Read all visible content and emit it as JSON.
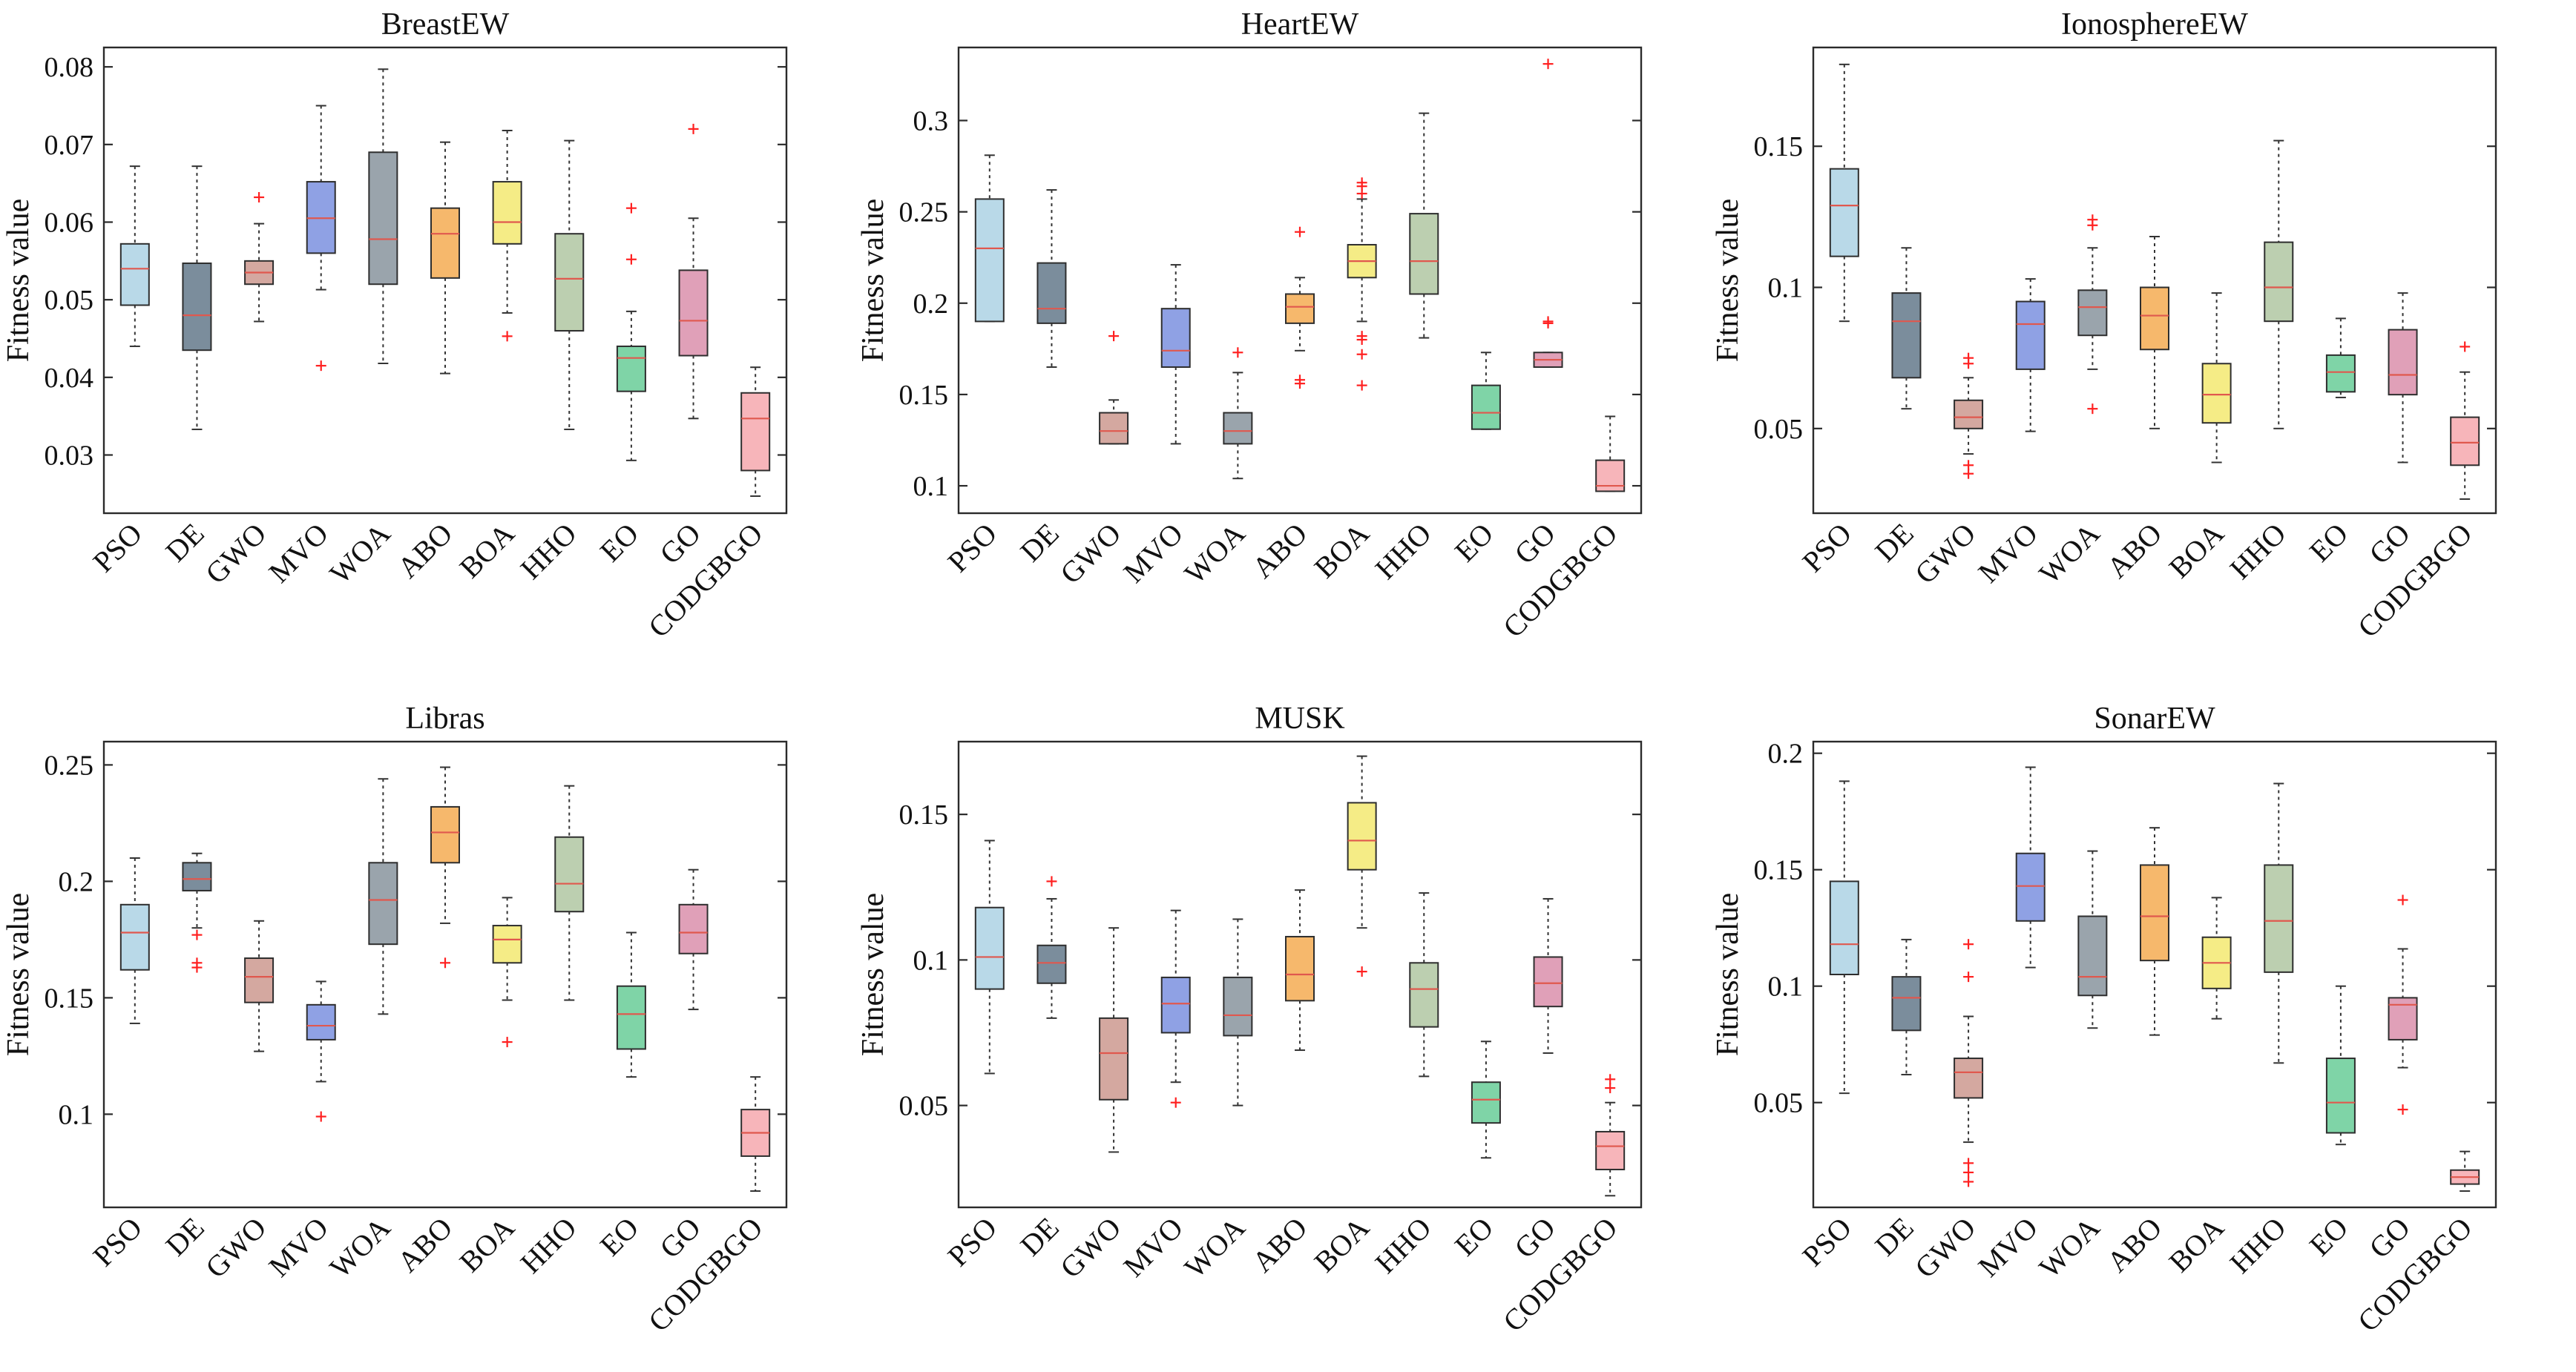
{
  "chart_data": [
    {
      "type": "box",
      "title": "BreastEW",
      "ylabel": "Fitness value",
      "xlabel": "",
      "ylim": [
        0.0225,
        0.0825
      ],
      "yticks": [
        0.03,
        0.04,
        0.05,
        0.06,
        0.07,
        0.08
      ],
      "ytick_labels": [
        "0.03",
        "0.04",
        "0.05",
        "0.06",
        "0.07",
        "0.08"
      ],
      "categories": [
        "PSO",
        "DE",
        "GWO",
        "MVO",
        "WOA",
        "ABO",
        "BOA",
        "HHO",
        "EO",
        "GO",
        "CODGBGO"
      ],
      "boxes": [
        {
          "category": "PSO",
          "whisker_low": 0.044,
          "q1": 0.0493,
          "median": 0.054,
          "q3": 0.0572,
          "whisker_high": 0.0672,
          "outliers": []
        },
        {
          "category": "DE",
          "whisker_low": 0.0333,
          "q1": 0.0435,
          "median": 0.048,
          "q3": 0.0547,
          "whisker_high": 0.0672,
          "outliers": []
        },
        {
          "category": "GWO",
          "whisker_low": 0.0472,
          "q1": 0.052,
          "median": 0.0535,
          "q3": 0.055,
          "whisker_high": 0.0598,
          "outliers": [
            0.0632
          ]
        },
        {
          "category": "MVO",
          "whisker_low": 0.0513,
          "q1": 0.056,
          "median": 0.0605,
          "q3": 0.0652,
          "whisker_high": 0.075,
          "outliers": [
            0.0415
          ]
        },
        {
          "category": "WOA",
          "whisker_low": 0.0418,
          "q1": 0.052,
          "median": 0.0578,
          "q3": 0.069,
          "whisker_high": 0.0797,
          "outliers": []
        },
        {
          "category": "ABO",
          "whisker_low": 0.0405,
          "q1": 0.0528,
          "median": 0.0585,
          "q3": 0.0618,
          "whisker_high": 0.0703,
          "outliers": []
        },
        {
          "category": "BOA",
          "whisker_low": 0.0483,
          "q1": 0.0572,
          "median": 0.06,
          "q3": 0.0652,
          "whisker_high": 0.0718,
          "outliers": [
            0.0453
          ]
        },
        {
          "category": "HHO",
          "whisker_low": 0.0333,
          "q1": 0.046,
          "median": 0.0527,
          "q3": 0.0585,
          "whisker_high": 0.0705,
          "outliers": []
        },
        {
          "category": "EO",
          "whisker_low": 0.0293,
          "q1": 0.0382,
          "median": 0.0425,
          "q3": 0.044,
          "whisker_high": 0.0485,
          "outliers": [
            0.0552,
            0.0618
          ]
        },
        {
          "category": "GO",
          "whisker_low": 0.0347,
          "q1": 0.0428,
          "median": 0.0473,
          "q3": 0.0538,
          "whisker_high": 0.0605,
          "outliers": [
            0.072
          ]
        },
        {
          "category": "CODGBGO",
          "whisker_low": 0.0247,
          "q1": 0.028,
          "median": 0.0347,
          "q3": 0.038,
          "whisker_high": 0.0413,
          "outliers": []
        }
      ]
    },
    {
      "type": "box",
      "title": "HeartEW",
      "ylabel": "Fitness value",
      "xlabel": "",
      "ylim": [
        0.085,
        0.34
      ],
      "yticks": [
        0.1,
        0.15,
        0.2,
        0.25,
        0.3
      ],
      "ytick_labels": [
        "0.1",
        "0.15",
        "0.2",
        "0.25",
        "0.3"
      ],
      "categories": [
        "PSO",
        "DE",
        "GWO",
        "MVO",
        "WOA",
        "ABO",
        "BOA",
        "HHO",
        "EO",
        "GO",
        "CODGBGO"
      ],
      "boxes": [
        {
          "category": "PSO",
          "whisker_low": 0.19,
          "q1": 0.19,
          "median": 0.23,
          "q3": 0.257,
          "whisker_high": 0.281,
          "outliers": []
        },
        {
          "category": "DE",
          "whisker_low": 0.165,
          "q1": 0.189,
          "median": 0.197,
          "q3": 0.222,
          "whisker_high": 0.262,
          "outliers": []
        },
        {
          "category": "GWO",
          "whisker_low": 0.123,
          "q1": 0.123,
          "median": 0.13,
          "q3": 0.14,
          "whisker_high": 0.147,
          "outliers": [
            0.182
          ]
        },
        {
          "category": "MVO",
          "whisker_low": 0.123,
          "q1": 0.165,
          "median": 0.174,
          "q3": 0.197,
          "whisker_high": 0.221,
          "outliers": []
        },
        {
          "category": "WOA",
          "whisker_low": 0.104,
          "q1": 0.123,
          "median": 0.13,
          "q3": 0.14,
          "whisker_high": 0.162,
          "outliers": [
            0.173
          ]
        },
        {
          "category": "ABO",
          "whisker_low": 0.174,
          "q1": 0.189,
          "median": 0.198,
          "q3": 0.205,
          "whisker_high": 0.214,
          "outliers": [
            0.156,
            0.158,
            0.239
          ]
        },
        {
          "category": "BOA",
          "whisker_low": 0.19,
          "q1": 0.214,
          "median": 0.223,
          "q3": 0.232,
          "whisker_high": 0.257,
          "outliers": [
            0.155,
            0.172,
            0.18,
            0.182,
            0.26,
            0.264,
            0.266
          ]
        },
        {
          "category": "HHO",
          "whisker_low": 0.181,
          "q1": 0.205,
          "median": 0.223,
          "q3": 0.249,
          "whisker_high": 0.304,
          "outliers": []
        },
        {
          "category": "EO",
          "whisker_low": 0.131,
          "q1": 0.131,
          "median": 0.14,
          "q3": 0.155,
          "whisker_high": 0.173,
          "outliers": []
        },
        {
          "category": "GO",
          "whisker_low": 0.165,
          "q1": 0.165,
          "median": 0.169,
          "q3": 0.173,
          "whisker_high": 0.173,
          "outliers": [
            0.189,
            0.19,
            0.331
          ]
        },
        {
          "category": "CODGBGO",
          "whisker_low": 0.097,
          "q1": 0.097,
          "median": 0.1,
          "q3": 0.114,
          "whisker_high": 0.138,
          "outliers": []
        }
      ]
    },
    {
      "type": "box",
      "title": "IonosphereEW",
      "ylabel": "Fitness value",
      "xlabel": "",
      "ylim": [
        0.02,
        0.185
      ],
      "yticks": [
        0.05,
        0.1,
        0.15
      ],
      "ytick_labels": [
        "0.05",
        "0.1",
        "0.15"
      ],
      "categories": [
        "PSO",
        "DE",
        "GWO",
        "MVO",
        "WOA",
        "ABO",
        "BOA",
        "HHO",
        "EO",
        "GO",
        "CODGBGO"
      ],
      "boxes": [
        {
          "category": "PSO",
          "whisker_low": 0.088,
          "q1": 0.111,
          "median": 0.129,
          "q3": 0.142,
          "whisker_high": 0.179,
          "outliers": []
        },
        {
          "category": "DE",
          "whisker_low": 0.057,
          "q1": 0.068,
          "median": 0.088,
          "q3": 0.098,
          "whisker_high": 0.114,
          "outliers": []
        },
        {
          "category": "GWO",
          "whisker_low": 0.041,
          "q1": 0.05,
          "median": 0.054,
          "q3": 0.06,
          "whisker_high": 0.068,
          "outliers": [
            0.034,
            0.037,
            0.073,
            0.075
          ]
        },
        {
          "category": "MVO",
          "whisker_low": 0.049,
          "q1": 0.071,
          "median": 0.087,
          "q3": 0.095,
          "whisker_high": 0.103,
          "outliers": []
        },
        {
          "category": "WOA",
          "whisker_low": 0.071,
          "q1": 0.083,
          "median": 0.093,
          "q3": 0.099,
          "whisker_high": 0.114,
          "outliers": [
            0.057,
            0.122,
            0.124
          ]
        },
        {
          "category": "ABO",
          "whisker_low": 0.05,
          "q1": 0.078,
          "median": 0.09,
          "q3": 0.1,
          "whisker_high": 0.118,
          "outliers": []
        },
        {
          "category": "BOA",
          "whisker_low": 0.038,
          "q1": 0.052,
          "median": 0.062,
          "q3": 0.073,
          "whisker_high": 0.098,
          "outliers": []
        },
        {
          "category": "HHO",
          "whisker_low": 0.05,
          "q1": 0.088,
          "median": 0.1,
          "q3": 0.116,
          "whisker_high": 0.152,
          "outliers": []
        },
        {
          "category": "EO",
          "whisker_low": 0.061,
          "q1": 0.063,
          "median": 0.07,
          "q3": 0.076,
          "whisker_high": 0.089,
          "outliers": []
        },
        {
          "category": "GO",
          "whisker_low": 0.038,
          "q1": 0.062,
          "median": 0.069,
          "q3": 0.085,
          "whisker_high": 0.098,
          "outliers": []
        },
        {
          "category": "CODGBGO",
          "whisker_low": 0.025,
          "q1": 0.037,
          "median": 0.045,
          "q3": 0.054,
          "whisker_high": 0.07,
          "outliers": [
            0.079
          ]
        }
      ]
    },
    {
      "type": "box",
      "title": "Libras",
      "ylabel": "Fitness value",
      "xlabel": "",
      "ylim": [
        0.06,
        0.26
      ],
      "yticks": [
        0.1,
        0.15,
        0.2,
        0.25
      ],
      "ytick_labels": [
        "0.1",
        "0.15",
        "0.2",
        "0.25"
      ],
      "categories": [
        "PSO",
        "DE",
        "GWO",
        "MVO",
        "WOA",
        "ABO",
        "BOA",
        "HHO",
        "EO",
        "GO",
        "CODGBGO"
      ],
      "boxes": [
        {
          "category": "PSO",
          "whisker_low": 0.139,
          "q1": 0.162,
          "median": 0.178,
          "q3": 0.19,
          "whisker_high": 0.21,
          "outliers": []
        },
        {
          "category": "DE",
          "whisker_low": 0.18,
          "q1": 0.196,
          "median": 0.201,
          "q3": 0.208,
          "whisker_high": 0.212,
          "outliers": [
            0.163,
            0.165,
            0.177
          ]
        },
        {
          "category": "GWO",
          "whisker_low": 0.127,
          "q1": 0.148,
          "median": 0.159,
          "q3": 0.167,
          "whisker_high": 0.183,
          "outliers": []
        },
        {
          "category": "MVO",
          "whisker_low": 0.114,
          "q1": 0.132,
          "median": 0.138,
          "q3": 0.147,
          "whisker_high": 0.157,
          "outliers": [
            0.099
          ]
        },
        {
          "category": "WOA",
          "whisker_low": 0.143,
          "q1": 0.173,
          "median": 0.192,
          "q3": 0.208,
          "whisker_high": 0.244,
          "outliers": []
        },
        {
          "category": "ABO",
          "whisker_low": 0.182,
          "q1": 0.208,
          "median": 0.221,
          "q3": 0.232,
          "whisker_high": 0.249,
          "outliers": [
            0.165
          ]
        },
        {
          "category": "BOA",
          "whisker_low": 0.149,
          "q1": 0.165,
          "median": 0.175,
          "q3": 0.181,
          "whisker_high": 0.193,
          "outliers": [
            0.131
          ]
        },
        {
          "category": "HHO",
          "whisker_low": 0.149,
          "q1": 0.187,
          "median": 0.199,
          "q3": 0.219,
          "whisker_high": 0.241,
          "outliers": []
        },
        {
          "category": "EO",
          "whisker_low": 0.116,
          "q1": 0.128,
          "median": 0.143,
          "q3": 0.155,
          "whisker_high": 0.178,
          "outliers": []
        },
        {
          "category": "GO",
          "whisker_low": 0.145,
          "q1": 0.169,
          "median": 0.178,
          "q3": 0.19,
          "whisker_high": 0.205,
          "outliers": []
        },
        {
          "category": "CODGBGO",
          "whisker_low": 0.067,
          "q1": 0.082,
          "median": 0.092,
          "q3": 0.102,
          "whisker_high": 0.116,
          "outliers": []
        }
      ]
    },
    {
      "type": "box",
      "title": "MUSK",
      "ylabel": "Fitness value",
      "xlabel": "",
      "ylim": [
        0.015,
        0.175
      ],
      "yticks": [
        0.05,
        0.1,
        0.15
      ],
      "ytick_labels": [
        "0.05",
        "0.1",
        "0.15"
      ],
      "categories": [
        "PSO",
        "DE",
        "GWO",
        "MVO",
        "WOA",
        "ABO",
        "BOA",
        "HHO",
        "EO",
        "GO",
        "CODGBGO"
      ],
      "boxes": [
        {
          "category": "PSO",
          "whisker_low": 0.061,
          "q1": 0.09,
          "median": 0.101,
          "q3": 0.118,
          "whisker_high": 0.141,
          "outliers": []
        },
        {
          "category": "DE",
          "whisker_low": 0.08,
          "q1": 0.092,
          "median": 0.099,
          "q3": 0.105,
          "whisker_high": 0.121,
          "outliers": [
            0.127
          ]
        },
        {
          "category": "GWO",
          "whisker_low": 0.034,
          "q1": 0.052,
          "median": 0.068,
          "q3": 0.08,
          "whisker_high": 0.111,
          "outliers": []
        },
        {
          "category": "MVO",
          "whisker_low": 0.058,
          "q1": 0.075,
          "median": 0.085,
          "q3": 0.094,
          "whisker_high": 0.117,
          "outliers": [
            0.051
          ]
        },
        {
          "category": "WOA",
          "whisker_low": 0.05,
          "q1": 0.074,
          "median": 0.081,
          "q3": 0.094,
          "whisker_high": 0.114,
          "outliers": []
        },
        {
          "category": "ABO",
          "whisker_low": 0.069,
          "q1": 0.086,
          "median": 0.095,
          "q3": 0.108,
          "whisker_high": 0.124,
          "outliers": []
        },
        {
          "category": "BOA",
          "whisker_low": 0.111,
          "q1": 0.131,
          "median": 0.141,
          "q3": 0.154,
          "whisker_high": 0.17,
          "outliers": [
            0.096
          ]
        },
        {
          "category": "HHO",
          "whisker_low": 0.06,
          "q1": 0.077,
          "median": 0.09,
          "q3": 0.099,
          "whisker_high": 0.123,
          "outliers": []
        },
        {
          "category": "EO",
          "whisker_low": 0.032,
          "q1": 0.044,
          "median": 0.052,
          "q3": 0.058,
          "whisker_high": 0.072,
          "outliers": []
        },
        {
          "category": "GO",
          "whisker_low": 0.068,
          "q1": 0.084,
          "median": 0.092,
          "q3": 0.101,
          "whisker_high": 0.121,
          "outliers": []
        },
        {
          "category": "CODGBGO",
          "whisker_low": 0.019,
          "q1": 0.028,
          "median": 0.036,
          "q3": 0.041,
          "whisker_high": 0.051,
          "outliers": [
            0.056,
            0.059
          ]
        }
      ]
    },
    {
      "type": "box",
      "title": "SonarEW",
      "ylabel": "Fitness value",
      "xlabel": "",
      "ylim": [
        0.005,
        0.205
      ],
      "yticks": [
        0.05,
        0.1,
        0.15,
        0.2
      ],
      "ytick_labels": [
        "0.05",
        "0.1",
        "0.15",
        "0.2"
      ],
      "categories": [
        "PSO",
        "DE",
        "GWO",
        "MVO",
        "WOA",
        "ABO",
        "BOA",
        "HHO",
        "EO",
        "GO",
        "CODGBGO"
      ],
      "boxes": [
        {
          "category": "PSO",
          "whisker_low": 0.054,
          "q1": 0.105,
          "median": 0.118,
          "q3": 0.145,
          "whisker_high": 0.188,
          "outliers": []
        },
        {
          "category": "DE",
          "whisker_low": 0.062,
          "q1": 0.081,
          "median": 0.095,
          "q3": 0.104,
          "whisker_high": 0.12,
          "outliers": []
        },
        {
          "category": "GWO",
          "whisker_low": 0.033,
          "q1": 0.052,
          "median": 0.063,
          "q3": 0.069,
          "whisker_high": 0.087,
          "outliers": [
            0.016,
            0.02,
            0.024,
            0.104,
            0.118
          ]
        },
        {
          "category": "MVO",
          "whisker_low": 0.108,
          "q1": 0.128,
          "median": 0.143,
          "q3": 0.157,
          "whisker_high": 0.194,
          "outliers": []
        },
        {
          "category": "WOA",
          "whisker_low": 0.082,
          "q1": 0.096,
          "median": 0.104,
          "q3": 0.13,
          "whisker_high": 0.158,
          "outliers": []
        },
        {
          "category": "ABO",
          "whisker_low": 0.079,
          "q1": 0.111,
          "median": 0.13,
          "q3": 0.152,
          "whisker_high": 0.168,
          "outliers": []
        },
        {
          "category": "BOA",
          "whisker_low": 0.086,
          "q1": 0.099,
          "median": 0.11,
          "q3": 0.121,
          "whisker_high": 0.138,
          "outliers": []
        },
        {
          "category": "HHO",
          "whisker_low": 0.067,
          "q1": 0.106,
          "median": 0.128,
          "q3": 0.152,
          "whisker_high": 0.187,
          "outliers": []
        },
        {
          "category": "EO",
          "whisker_low": 0.032,
          "q1": 0.037,
          "median": 0.05,
          "q3": 0.069,
          "whisker_high": 0.1,
          "outliers": []
        },
        {
          "category": "GO",
          "whisker_low": 0.065,
          "q1": 0.077,
          "median": 0.092,
          "q3": 0.095,
          "whisker_high": 0.116,
          "outliers": [
            0.047,
            0.137
          ]
        },
        {
          "category": "CODGBGO",
          "whisker_low": 0.012,
          "q1": 0.015,
          "median": 0.018,
          "q3": 0.021,
          "whisker_high": 0.029,
          "outliers": []
        }
      ]
    }
  ],
  "style": {
    "box_colors": [
      "#b9d9e8",
      "#7b8d9c",
      "#d4a8a0",
      "#8fa1e4",
      "#9aa4ac",
      "#f6b86c",
      "#f5ec86",
      "#bccfb0",
      "#7fd4a7",
      "#e0a0b8",
      "#f7b5ba"
    ],
    "median_color": "#e0584e",
    "outlier_color": "#ff2020",
    "axis_color": "#2b2b2b"
  }
}
